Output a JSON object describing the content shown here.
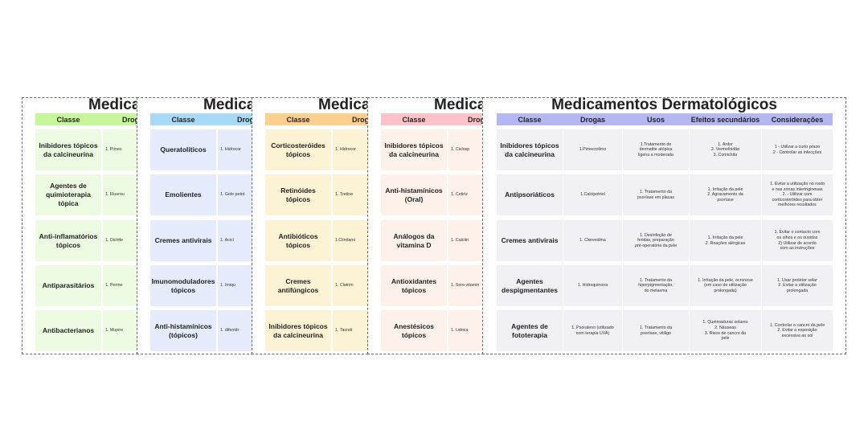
{
  "colors": {
    "card1_header": "#c7f59a",
    "card1_cells": "#eefbe3",
    "card2_header": "#a6daf6",
    "card2_cells": "#e6ecfb",
    "card3_header": "#fbcf8e",
    "card3_cells": "#fcf3d4",
    "card4_header": "#fbc3c8",
    "card4_cells": "#fdf1ea",
    "card5_header": "#b4b7f1",
    "card5_cells": "#f1f1f5"
  },
  "card1": {
    "title": "Medica",
    "col_class": "Classe",
    "col_drug": "Drog",
    "rows": [
      {
        "classe": "Inibidores tópicos da calcineurina",
        "droga": "1. Pimec"
      },
      {
        "classe": "Agentes de quimioterapia tópica",
        "droga": "1. Fluorou"
      },
      {
        "classe": "Anti-inflamatórios tópicos",
        "droga": "1. Diclofe"
      },
      {
        "classe": "Antiparasitários",
        "droga": "1. Perme"
      },
      {
        "classe": "Antibacterianos",
        "droga": "1. Mupiro"
      }
    ]
  },
  "card2": {
    "title": "Medica",
    "col_class": "Classe",
    "col_drug": "Drog",
    "rows": [
      {
        "classe": "Queratolíticos",
        "droga": "1. Hidrocor"
      },
      {
        "classe": "Emolientes",
        "droga": "1. Gele\npetró"
      },
      {
        "classe": "Cremes antivirais",
        "droga": "1. Acicl"
      },
      {
        "classe": "Imunomoduladores tópicos",
        "droga": "1. Imiqu"
      },
      {
        "classe": "Anti-histamínicos (tópicos)",
        "droga": "1. difenidr"
      }
    ]
  },
  "card3": {
    "title": "Medica",
    "col_class": "Classe",
    "col_drug": "Drog",
    "rows": [
      {
        "classe": "Corticosteróides tópicos",
        "droga": "1. Hidrocor"
      },
      {
        "classe": "Retinóides tópicos",
        "droga": "1. Tretino"
      },
      {
        "classe": "Antibióticos tópicos",
        "droga": "1.Clindami"
      },
      {
        "classe": "Cremes antifúngicos",
        "droga": "1. Clotrim"
      },
      {
        "classe": "Inibidores tópicos da calcineurina",
        "droga": "1. Tacroli"
      }
    ]
  },
  "card4": {
    "title": "Medica",
    "col_class": "Classe",
    "col_drug": "Drog",
    "rows": [
      {
        "classe": "Inibidores tópicos da calcineurina",
        "droga": "1. Ciclosp"
      },
      {
        "classe": "Anti-histamínicos (Oral)",
        "droga": "1. Cetiriz"
      },
      {
        "classe": "Análogos da vitamina D",
        "droga": "1. Calcitri"
      },
      {
        "classe": "Antioxidantes tópicos",
        "droga": "1. Soro\nvitamin"
      },
      {
        "classe": "Anestésicos tópicos",
        "droga": "1. Lidoca"
      }
    ]
  },
  "card5": {
    "title": "Medicamentos Dermatológicos",
    "headers": [
      "Classe",
      "Drogas",
      "Usos",
      "Efeitos secundários",
      "Considerações"
    ],
    "rows": [
      {
        "classe": "Inibidores tópicos da calcineurina",
        "drogas": "1.Pimecrolimo",
        "usos": "1.Tratamento de\ndermatite atópica\nligeira a moderada",
        "efeitos": "1. Ardor\n2. Vermelhidão\n3. Comichão",
        "consideracoes": "1 - Utilizar a curto prazo\n2 - Controlar as infecções"
      },
      {
        "classe": "Antipsoriáticos",
        "drogas": "1.Calcipotriol",
        "usos": "1. Tratamento da\npsoríase em placas",
        "efeitos": "1. Irritação da pele\n2. Agravamento da\npsoríase",
        "consideracoes": "1. Evitar a utilização no rosto\ne nas zonas intertriginosas\n2. - Utilizar com\ncorticosteróides para obter\nmelhores resultados"
      },
      {
        "classe": "Cremes antivirais",
        "drogas": "1. Clorexidina",
        "usos": "1. Desinfeção de\nferidas, preparação\npré-operatória da pele",
        "efeitos": "1. Irritação da pele\n2. Reações alérgicas",
        "consideracoes": "1. Evitar o contacto com\nos olhos e os ouvidos\n2) Utilizar de acordo\ncom as instruções"
      },
      {
        "classe": "Agentes despigmentantes",
        "drogas": "1. Hidroquinona",
        "usos": "1. Tratamento da\nhiperpigmentação,\ndo melasma",
        "efeitos": "1. Irritação da pele, ocronose\n(em caso de utilização\nprolongada)",
        "consideracoes": "1. Usar protetor solar\n2. Evitar a utilização\nprolongada"
      },
      {
        "classe": "Agentes de fototerapia",
        "drogas": "1. Psoraleno (utilizado\ncom terapia UVA)",
        "usos": "1. Tratamento da\npsoríase, vitiligo",
        "efeitos": "1. Queimaduras solares\n2. Náuseas\n3. Risco de cancro da\npele",
        "consideracoes": "1. Controlar o cancro da pele\n2. Evitar a exposição\nexcessiva ao sol"
      }
    ]
  }
}
